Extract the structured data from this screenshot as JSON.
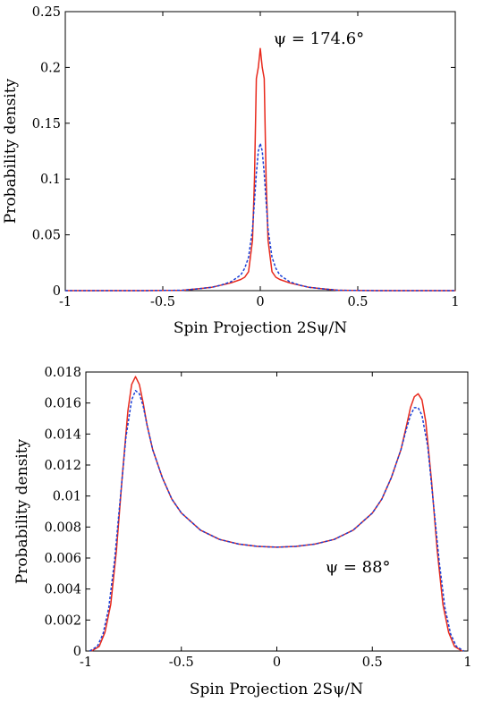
{
  "chart_data": [
    {
      "type": "line",
      "xlabel": "Spin Projection 2Sψ/N",
      "ylabel": "Probability density",
      "xlim": [
        -1,
        1
      ],
      "ylim": [
        0,
        0.25
      ],
      "xticks": [
        "-1",
        "-0.5",
        "0",
        "0.5",
        "1"
      ],
      "yticks": [
        "0",
        "0.05",
        "0.1",
        "0.15",
        "0.2",
        "0.25"
      ],
      "annotation": "ψ = 174.6°",
      "grid": false,
      "series": [
        {
          "style": "solid",
          "color": "#e8291c",
          "x": [
            -1,
            -0.6,
            -0.4,
            -0.3,
            -0.25,
            -0.2,
            -0.15,
            -0.1,
            -0.08,
            -0.06,
            -0.04,
            -0.03,
            -0.02,
            -0.01,
            0,
            0.01,
            0.02,
            0.03,
            0.04,
            0.06,
            0.08,
            0.1,
            0.15,
            0.2,
            0.25,
            0.3,
            0.4,
            0.6,
            1
          ],
          "y": [
            0,
            0,
            0.0003,
            0.002,
            0.003,
            0.005,
            0.007,
            0.01,
            0.012,
            0.017,
            0.045,
            0.1,
            0.19,
            0.2,
            0.217,
            0.2,
            0.19,
            0.1,
            0.045,
            0.017,
            0.012,
            0.01,
            0.007,
            0.005,
            0.003,
            0.002,
            0.0003,
            0,
            0
          ]
        },
        {
          "style": "dashed",
          "color": "#1a3fd6",
          "x": [
            -1,
            -0.6,
            -0.4,
            -0.3,
            -0.25,
            -0.2,
            -0.15,
            -0.1,
            -0.08,
            -0.06,
            -0.04,
            -0.03,
            -0.02,
            -0.01,
            0,
            0.01,
            0.02,
            0.03,
            0.04,
            0.06,
            0.08,
            0.1,
            0.15,
            0.2,
            0.25,
            0.3,
            0.4,
            0.6,
            1
          ],
          "y": [
            0,
            0,
            0.0003,
            0.002,
            0.003,
            0.005,
            0.008,
            0.014,
            0.02,
            0.03,
            0.055,
            0.08,
            0.105,
            0.125,
            0.132,
            0.125,
            0.105,
            0.08,
            0.055,
            0.03,
            0.02,
            0.014,
            0.008,
            0.005,
            0.003,
            0.002,
            0.0003,
            0,
            0
          ]
        }
      ]
    },
    {
      "type": "line",
      "xlabel": "Spin Projection 2Sψ/N",
      "ylabel": "Probability density",
      "xlim": [
        -1,
        1
      ],
      "ylim": [
        0,
        0.018
      ],
      "xticks": [
        "-1",
        "-0.5",
        "0",
        "0.5",
        "1"
      ],
      "yticks": [
        "0",
        "0.002",
        "0.004",
        "0.006",
        "0.008",
        "0.01",
        "0.012",
        "0.014",
        "0.016",
        "0.018"
      ],
      "annotation": "ψ = 88°",
      "grid": false,
      "series": [
        {
          "style": "solid",
          "color": "#e8291c",
          "x": [
            -0.97,
            -0.93,
            -0.9,
            -0.87,
            -0.84,
            -0.81,
            -0.78,
            -0.76,
            -0.74,
            -0.72,
            -0.7,
            -0.68,
            -0.65,
            -0.6,
            -0.55,
            -0.5,
            -0.4,
            -0.3,
            -0.2,
            -0.1,
            0,
            0.1,
            0.2,
            0.3,
            0.4,
            0.5,
            0.55,
            0.6,
            0.65,
            0.68,
            0.7,
            0.72,
            0.74,
            0.76,
            0.78,
            0.81,
            0.84,
            0.87,
            0.9,
            0.93,
            0.97
          ],
          "y": [
            0,
            0.0003,
            0.0012,
            0.003,
            0.0065,
            0.0112,
            0.0155,
            0.0172,
            0.0177,
            0.0172,
            0.016,
            0.0146,
            0.013,
            0.0112,
            0.0098,
            0.0089,
            0.0078,
            0.0072,
            0.0069,
            0.00675,
            0.0067,
            0.00675,
            0.0069,
            0.0072,
            0.0078,
            0.0089,
            0.0098,
            0.0112,
            0.013,
            0.0146,
            0.0157,
            0.0164,
            0.0166,
            0.0162,
            0.0148,
            0.011,
            0.0065,
            0.003,
            0.0012,
            0.0003,
            0
          ]
        },
        {
          "style": "dashed",
          "color": "#1a3fd6",
          "x": [
            -0.98,
            -0.94,
            -0.91,
            -0.88,
            -0.85,
            -0.82,
            -0.79,
            -0.76,
            -0.74,
            -0.72,
            -0.7,
            -0.68,
            -0.65,
            -0.6,
            -0.55,
            -0.5,
            -0.4,
            -0.3,
            -0.2,
            -0.1,
            0,
            0.1,
            0.2,
            0.3,
            0.4,
            0.5,
            0.55,
            0.6,
            0.65,
            0.68,
            0.7,
            0.72,
            0.74,
            0.76,
            0.79,
            0.82,
            0.85,
            0.88,
            0.91,
            0.94,
            0.98
          ],
          "y": [
            0,
            0.0003,
            0.0011,
            0.0028,
            0.0058,
            0.0098,
            0.0138,
            0.0162,
            0.0168,
            0.0166,
            0.0158,
            0.0146,
            0.013,
            0.0112,
            0.0098,
            0.0089,
            0.0078,
            0.0072,
            0.0069,
            0.00675,
            0.0067,
            0.00675,
            0.0069,
            0.0072,
            0.0078,
            0.0089,
            0.0098,
            0.0112,
            0.013,
            0.0144,
            0.0152,
            0.0157,
            0.0157,
            0.0152,
            0.0132,
            0.0095,
            0.0058,
            0.0028,
            0.0011,
            0.0003,
            0
          ]
        }
      ]
    }
  ]
}
